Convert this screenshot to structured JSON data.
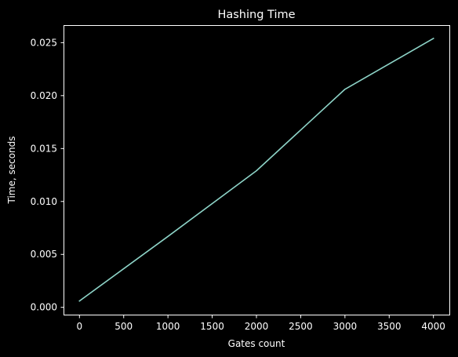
{
  "chart_data": {
    "type": "line",
    "title": "Hashing Time",
    "xlabel": "Gates count",
    "ylabel": "Time, seconds",
    "xlim": [
      -180,
      4180
    ],
    "ylim": [
      -0.000689,
      0.02666
    ],
    "x_ticks": [
      {
        "value": 0,
        "label": "0"
      },
      {
        "value": 500,
        "label": "500"
      },
      {
        "value": 1000,
        "label": "1000"
      },
      {
        "value": 1500,
        "label": "1500"
      },
      {
        "value": 2000,
        "label": "2000"
      },
      {
        "value": 2500,
        "label": "2500"
      },
      {
        "value": 3000,
        "label": "3000"
      },
      {
        "value": 3500,
        "label": "3500"
      },
      {
        "value": 4000,
        "label": "4000"
      }
    ],
    "y_ticks": [
      {
        "value": 0.0,
        "label": "0.000"
      },
      {
        "value": 0.005,
        "label": "0.005"
      },
      {
        "value": 0.01,
        "label": "0.010"
      },
      {
        "value": 0.015,
        "label": "0.015"
      },
      {
        "value": 0.02,
        "label": "0.020"
      },
      {
        "value": 0.025,
        "label": "0.025"
      }
    ],
    "grid": false,
    "legend": "none",
    "series": [
      {
        "color": "#8dd3c7",
        "x": [
          0,
          1000,
          2000,
          3000,
          4000
        ],
        "y": [
          0.0006,
          0.0067,
          0.0129,
          0.0206,
          0.0254
        ]
      }
    ]
  },
  "colors": {
    "background": "#000000",
    "axes": "#ffffff",
    "text": "#ffffff"
  }
}
